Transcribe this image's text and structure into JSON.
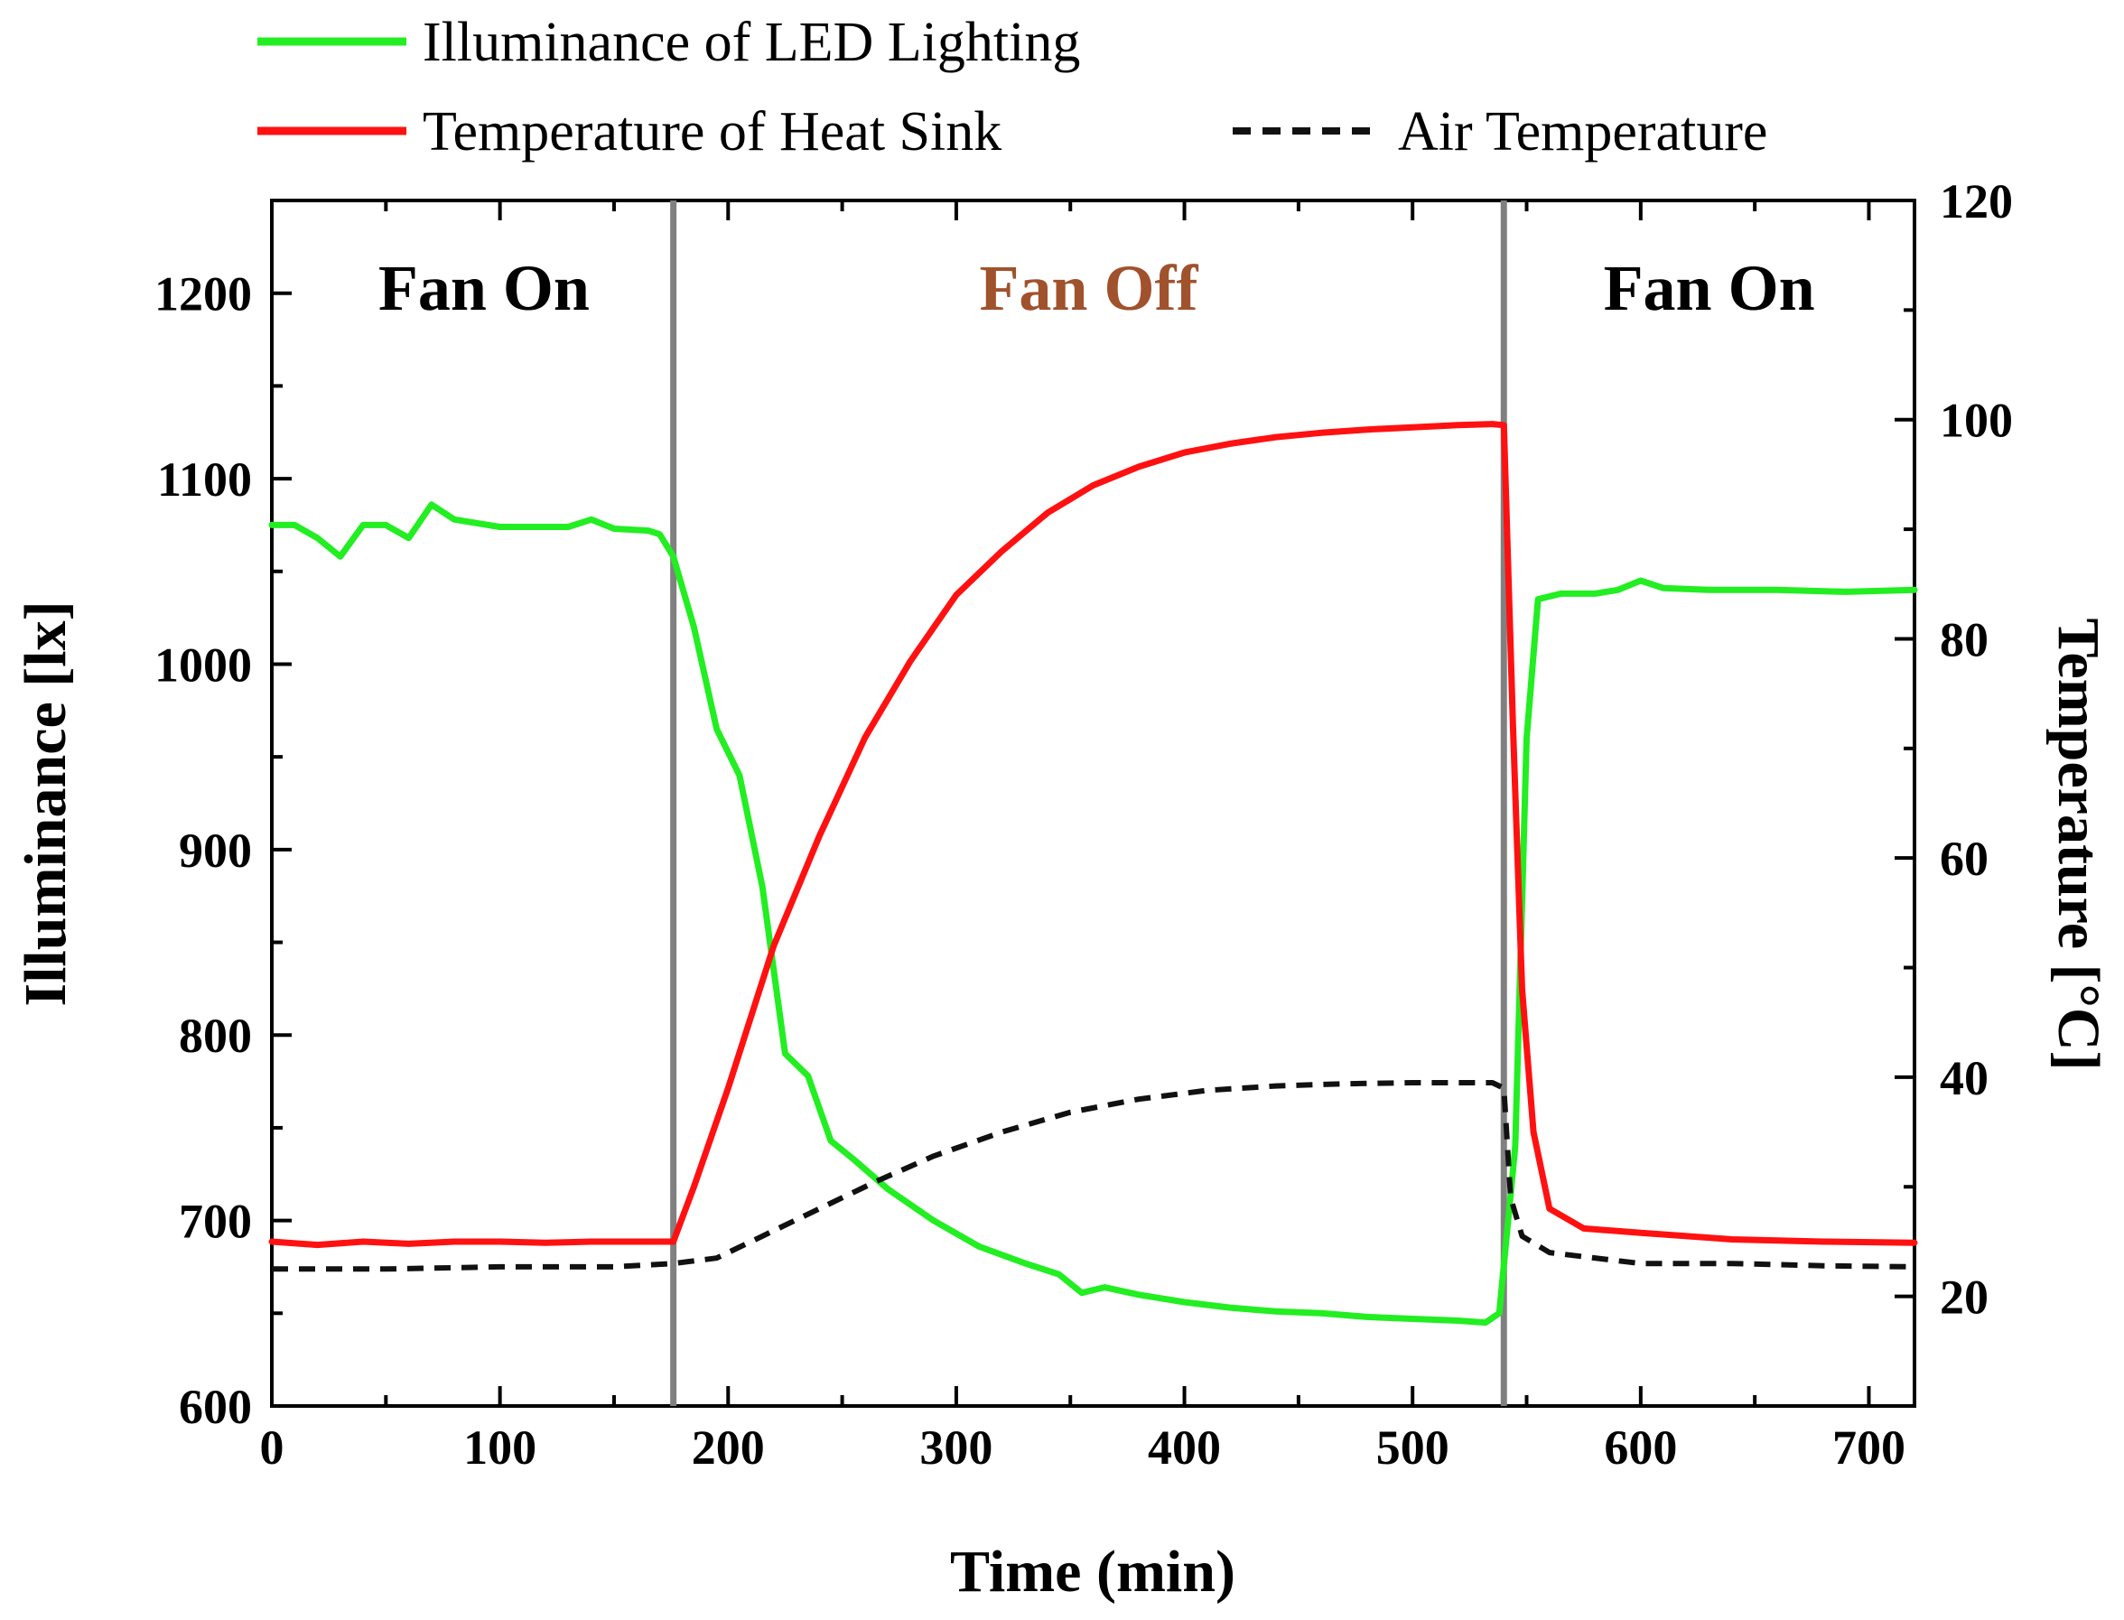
{
  "chart_data": {
    "type": "line",
    "title": "",
    "xlabel": "Time (min)",
    "ylabel_left": "Illuminance [lx]",
    "ylabel_right": "Temperature [°C]",
    "xlim": [
      0,
      720
    ],
    "ylim_left": [
      600,
      1250
    ],
    "ylim_right": [
      10,
      120
    ],
    "xticks": [
      0,
      100,
      200,
      300,
      400,
      500,
      600,
      700
    ],
    "yticks_left": [
      600,
      700,
      800,
      900,
      1000,
      1100,
      1200
    ],
    "yticks_right": [
      20,
      40,
      60,
      80,
      100,
      120
    ],
    "legend_position": "top",
    "phase_boundaries": [
      176,
      540
    ],
    "annotations": [
      {
        "text": "Fan On",
        "x": 93,
        "color": "#000000"
      },
      {
        "text": "Fan Off",
        "x": 358,
        "color": "#a0522d"
      },
      {
        "text": "Fan On",
        "x": 630,
        "color": "#000000"
      }
    ],
    "series": [
      {
        "name": "Illuminance of LED Lighting",
        "axis": "left",
        "color": "#22ee22",
        "style": "solid",
        "points": [
          [
            0,
            1075
          ],
          [
            10,
            1075
          ],
          [
            20,
            1068
          ],
          [
            30,
            1058
          ],
          [
            40,
            1075
          ],
          [
            50,
            1075
          ],
          [
            60,
            1068
          ],
          [
            70,
            1086
          ],
          [
            80,
            1078
          ],
          [
            90,
            1076
          ],
          [
            100,
            1074
          ],
          [
            120,
            1074
          ],
          [
            130,
            1074
          ],
          [
            140,
            1078
          ],
          [
            150,
            1073
          ],
          [
            165,
            1072
          ],
          [
            170,
            1070
          ],
          [
            176,
            1058
          ],
          [
            185,
            1020
          ],
          [
            195,
            965
          ],
          [
            205,
            940
          ],
          [
            215,
            880
          ],
          [
            225,
            790
          ],
          [
            235,
            778
          ],
          [
            245,
            743
          ],
          [
            255,
            733
          ],
          [
            270,
            717
          ],
          [
            290,
            700
          ],
          [
            310,
            686
          ],
          [
            330,
            677
          ],
          [
            345,
            671
          ],
          [
            355,
            661
          ],
          [
            365,
            664
          ],
          [
            380,
            660
          ],
          [
            400,
            656
          ],
          [
            420,
            653
          ],
          [
            440,
            651
          ],
          [
            460,
            650
          ],
          [
            480,
            648
          ],
          [
            500,
            647
          ],
          [
            520,
            646
          ],
          [
            532,
            645
          ],
          [
            538,
            650
          ],
          [
            545,
            740
          ],
          [
            550,
            960
          ],
          [
            555,
            1035
          ],
          [
            565,
            1038
          ],
          [
            580,
            1038
          ],
          [
            590,
            1040
          ],
          [
            600,
            1045
          ],
          [
            610,
            1041
          ],
          [
            630,
            1040
          ],
          [
            660,
            1040
          ],
          [
            690,
            1039
          ],
          [
            720,
            1040
          ]
        ]
      },
      {
        "name": "Temperature of Heat Sink",
        "axis": "right",
        "color": "#ff1111",
        "style": "solid",
        "points": [
          [
            0,
            25
          ],
          [
            20,
            24.7
          ],
          [
            40,
            25
          ],
          [
            60,
            24.8
          ],
          [
            80,
            25
          ],
          [
            100,
            25
          ],
          [
            120,
            24.9
          ],
          [
            140,
            25
          ],
          [
            160,
            25
          ],
          [
            176,
            25
          ],
          [
            185,
            30
          ],
          [
            200,
            39
          ],
          [
            220,
            52
          ],
          [
            240,
            62
          ],
          [
            260,
            71
          ],
          [
            280,
            78
          ],
          [
            300,
            84
          ],
          [
            320,
            88
          ],
          [
            340,
            91.5
          ],
          [
            360,
            94
          ],
          [
            380,
            95.7
          ],
          [
            400,
            97
          ],
          [
            420,
            97.8
          ],
          [
            440,
            98.4
          ],
          [
            460,
            98.8
          ],
          [
            480,
            99.1
          ],
          [
            500,
            99.3
          ],
          [
            520,
            99.5
          ],
          [
            535,
            99.6
          ],
          [
            540,
            99.5
          ],
          [
            544,
            72
          ],
          [
            548,
            48
          ],
          [
            553,
            35
          ],
          [
            560,
            28
          ],
          [
            575,
            26.2
          ],
          [
            600,
            25.8
          ],
          [
            640,
            25.2
          ],
          [
            680,
            25
          ],
          [
            720,
            24.9
          ]
        ]
      },
      {
        "name": "Air Temperature",
        "axis": "right",
        "color": "#111111",
        "style": "dashed",
        "points": [
          [
            0,
            22.5
          ],
          [
            50,
            22.5
          ],
          [
            100,
            22.7
          ],
          [
            150,
            22.7
          ],
          [
            176,
            23
          ],
          [
            195,
            23.5
          ],
          [
            215,
            25.5
          ],
          [
            240,
            28
          ],
          [
            265,
            30.5
          ],
          [
            290,
            32.8
          ],
          [
            320,
            35
          ],
          [
            350,
            36.8
          ],
          [
            380,
            38
          ],
          [
            410,
            38.8
          ],
          [
            440,
            39.2
          ],
          [
            470,
            39.4
          ],
          [
            500,
            39.5
          ],
          [
            535,
            39.5
          ],
          [
            540,
            39
          ],
          [
            543,
            29
          ],
          [
            548,
            25.5
          ],
          [
            560,
            24
          ],
          [
            600,
            23
          ],
          [
            640,
            23
          ],
          [
            680,
            22.8
          ],
          [
            720,
            22.7
          ]
        ]
      }
    ]
  }
}
